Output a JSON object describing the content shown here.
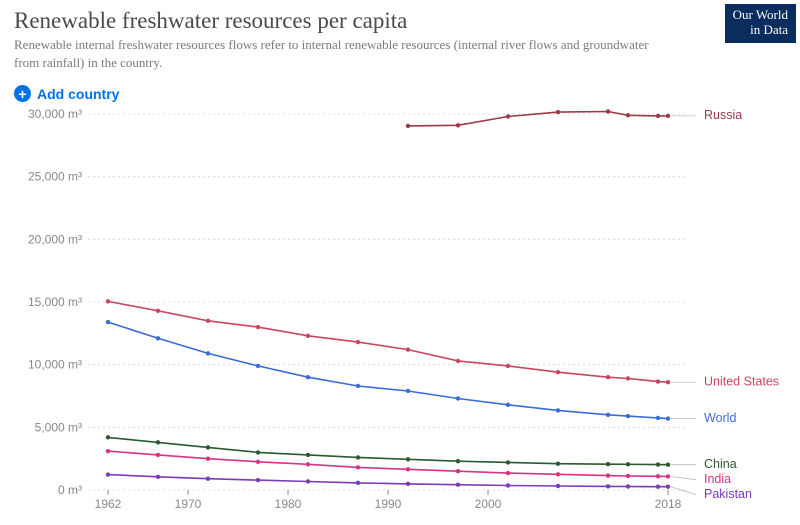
{
  "header": {
    "title": "Renewable freshwater resources per capita",
    "subtitle": "Renewable internal freshwater resources flows refer to internal renewable resources (internal river flows and groundwater from rainfall) in the country.",
    "logo_line1": "Our World",
    "logo_line2": "in Data"
  },
  "controls": {
    "add_country_label": "Add country"
  },
  "chart": {
    "type": "line",
    "xlim": [
      1960,
      2020
    ],
    "xticks": [
      1962,
      1970,
      1980,
      1990,
      2000,
      2018
    ],
    "ylim": [
      0,
      30000
    ],
    "ytick_step": 5000,
    "y_unit": "m³",
    "background_color": "#ffffff",
    "grid_color": "#dcdcdc",
    "axis_label_color": "#888888",
    "marker_radius": 2.2,
    "line_width": 1.6,
    "label_fontsize": 12.5,
    "tick_fontsize": 12,
    "series": [
      {
        "name": "Russia",
        "color": "#9c3a48",
        "data": [
          [
            1992,
            29050
          ],
          [
            1997,
            29100
          ],
          [
            2002,
            29800
          ],
          [
            2007,
            30150
          ],
          [
            2012,
            30200
          ],
          [
            2014,
            29900
          ],
          [
            2017,
            29850
          ],
          [
            2018,
            29850
          ]
        ]
      },
      {
        "name": "United States",
        "color": "#c8465f",
        "data": [
          [
            1962,
            15050
          ],
          [
            1967,
            14300
          ],
          [
            1972,
            13500
          ],
          [
            1977,
            13000
          ],
          [
            1982,
            12300
          ],
          [
            1987,
            11800
          ],
          [
            1992,
            11200
          ],
          [
            1997,
            10300
          ],
          [
            2002,
            9900
          ],
          [
            2007,
            9400
          ],
          [
            2012,
            9000
          ],
          [
            2014,
            8900
          ],
          [
            2017,
            8650
          ],
          [
            2018,
            8600
          ]
        ]
      },
      {
        "name": "World",
        "color": "#3a6cd8",
        "data": [
          [
            1962,
            13400
          ],
          [
            1967,
            12100
          ],
          [
            1972,
            10900
          ],
          [
            1977,
            9900
          ],
          [
            1982,
            9000
          ],
          [
            1987,
            8300
          ],
          [
            1992,
            7900
          ],
          [
            1997,
            7300
          ],
          [
            2002,
            6800
          ],
          [
            2007,
            6350
          ],
          [
            2012,
            6000
          ],
          [
            2014,
            5900
          ],
          [
            2017,
            5750
          ],
          [
            2018,
            5700
          ]
        ]
      },
      {
        "name": "China",
        "color": "#2a5a2f",
        "data": [
          [
            1962,
            4200
          ],
          [
            1967,
            3800
          ],
          [
            1972,
            3400
          ],
          [
            1977,
            3000
          ],
          [
            1982,
            2800
          ],
          [
            1987,
            2600
          ],
          [
            1992,
            2450
          ],
          [
            1997,
            2300
          ],
          [
            2002,
            2200
          ],
          [
            2007,
            2100
          ],
          [
            2012,
            2060
          ],
          [
            2014,
            2050
          ],
          [
            2017,
            2030
          ],
          [
            2018,
            2020
          ]
        ]
      },
      {
        "name": "India",
        "color": "#d63384",
        "data": [
          [
            1962,
            3100
          ],
          [
            1967,
            2800
          ],
          [
            1972,
            2500
          ],
          [
            1977,
            2250
          ],
          [
            1982,
            2050
          ],
          [
            1987,
            1800
          ],
          [
            1992,
            1650
          ],
          [
            1997,
            1500
          ],
          [
            2002,
            1350
          ],
          [
            2007,
            1250
          ],
          [
            2012,
            1150
          ],
          [
            2014,
            1120
          ],
          [
            2017,
            1090
          ],
          [
            2018,
            1080
          ]
        ]
      },
      {
        "name": "Pakistan",
        "color": "#7b3ab8",
        "data": [
          [
            1962,
            1230
          ],
          [
            1967,
            1050
          ],
          [
            1972,
            900
          ],
          [
            1977,
            790
          ],
          [
            1982,
            680
          ],
          [
            1987,
            570
          ],
          [
            1992,
            490
          ],
          [
            1997,
            420
          ],
          [
            2002,
            360
          ],
          [
            2007,
            320
          ],
          [
            2012,
            290
          ],
          [
            2014,
            280
          ],
          [
            2017,
            265
          ],
          [
            2018,
            260
          ]
        ]
      }
    ]
  }
}
